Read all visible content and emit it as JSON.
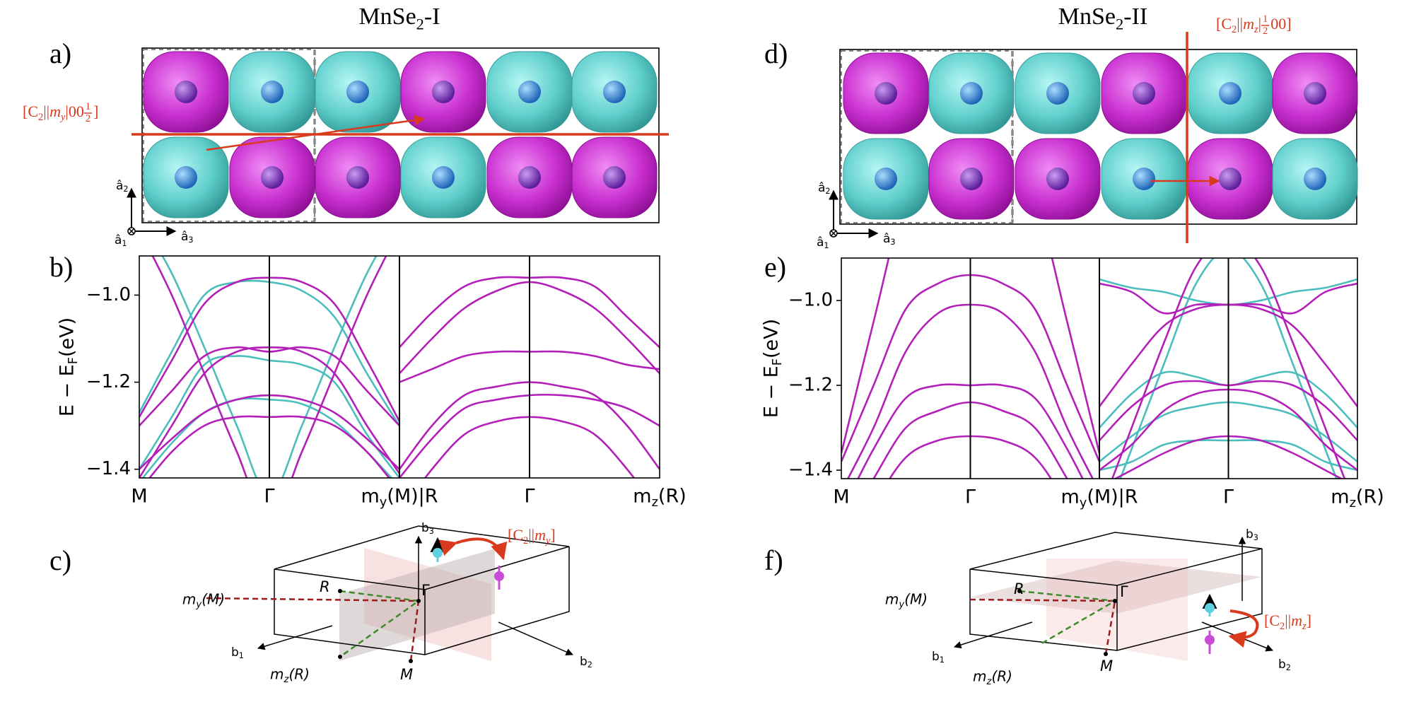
{
  "panel_labels": [
    "a)",
    "b)",
    "c)",
    "d)",
    "e)",
    "f)"
  ],
  "titles": [
    [
      "MnSe",
      "2",
      "-I"
    ],
    [
      "MnSe",
      "2",
      "-II"
    ]
  ],
  "symmetry_labels": [
    [
      "[C",
      "2",
      "||",
      "m",
      "y",
      "|00",
      "1",
      "2",
      "]"
    ],
    [
      "[C",
      "2",
      "||",
      "m",
      "z",
      "|",
      "1",
      "2",
      "00]"
    ]
  ],
  "lattice_axes": [
    [
      "â",
      "2"
    ],
    [
      "â",
      "3"
    ],
    [
      "â",
      "1"
    ]
  ],
  "chart_data": [
    {
      "type": "line",
      "ylabel": [
        "E − E",
        "F",
        " (eV)"
      ],
      "ylim": [
        -1.42,
        -0.91
      ],
      "yticks": [
        {
          "value": -1.0,
          "label": "−1.0"
        },
        {
          "value": -1.2,
          "label": "−1.2"
        },
        {
          "value": -1.4,
          "label": "−1.4"
        }
      ],
      "xlim": [
        0,
        4
      ],
      "xticks": [
        {
          "value": 0,
          "label": [
            "M"
          ]
        },
        {
          "value": 1,
          "label": [
            "Γ"
          ]
        },
        {
          "value": 2,
          "label": [
            "m",
            "y",
            "(M)|R"
          ]
        },
        {
          "value": 3,
          "label": [
            "Γ"
          ]
        },
        {
          "value": 4,
          "label": [
            "m",
            "z",
            "(R)"
          ]
        }
      ],
      "segments": [
        {
          "x": [
            0,
            0.25,
            0.5,
            0.75,
            1,
            1.25,
            1.5,
            1.75,
            2
          ],
          "series": [
            {
              "color": "#4bbdbd",
              "values": [
                -1.27,
                -1.13,
                -1.0,
                -0.97,
                -0.97,
                -0.99,
                -1.05,
                -1.18,
                -1.3
              ]
            },
            {
              "color": "#4bbdbd",
              "values": [
                -1.4,
                -1.28,
                -1.16,
                -1.14,
                -1.15,
                -1.16,
                -1.2,
                -1.32,
                -1.42
              ]
            },
            {
              "color": "#4bbdbd",
              "values": [
                -1.43,
                -1.34,
                -1.27,
                -1.24,
                -1.24,
                -1.25,
                -1.29,
                -1.36,
                -1.44
              ]
            },
            {
              "color": "#4bbdbd",
              "values": [
                -0.82,
                -0.95,
                -1.12,
                -1.3,
                -1.46,
                -1.3,
                -1.12,
                -0.95,
                -0.82
              ]
            },
            {
              "color": "#b31fb8",
              "values": [
                -1.28,
                -1.15,
                -1.02,
                -0.97,
                -0.96,
                -0.97,
                -1.02,
                -1.15,
                -1.29
              ]
            },
            {
              "color": "#b31fb8",
              "values": [
                -1.42,
                -1.3,
                -1.18,
                -1.13,
                -1.12,
                -1.13,
                -1.18,
                -1.3,
                -1.41
              ]
            },
            {
              "color": "#b31fb8",
              "values": [
                -1.4,
                -1.33,
                -1.27,
                -1.24,
                -1.23,
                -1.24,
                -1.27,
                -1.33,
                -1.4
              ]
            },
            {
              "color": "#b31fb8",
              "values": [
                -1.3,
                -1.22,
                -1.14,
                -1.12,
                -1.13,
                -1.12,
                -1.14,
                -1.22,
                -1.3
              ]
            },
            {
              "color": "#b31fb8",
              "values": [
                -1.45,
                -1.36,
                -1.3,
                -1.28,
                -1.28,
                -1.28,
                -1.3,
                -1.36,
                -1.45
              ]
            },
            {
              "color": "#b31fb8",
              "values": [
                -0.85,
                -1.0,
                -1.18,
                -1.36,
                -1.52,
                -1.36,
                -1.18,
                -1.0,
                -0.85
              ]
            }
          ]
        },
        {
          "x": [
            2,
            2.25,
            2.5,
            2.75,
            3,
            3.25,
            3.5,
            3.75,
            4
          ],
          "series": [
            {
              "color": "#b31fb8",
              "values": [
                -1.12,
                -1.04,
                -0.98,
                -0.96,
                -0.96,
                -0.96,
                -0.98,
                -1.05,
                -1.12
              ]
            },
            {
              "color": "#b31fb8",
              "values": [
                -1.18,
                -1.1,
                -1.03,
                -0.99,
                -0.97,
                -0.99,
                -1.03,
                -1.1,
                -1.18
              ]
            },
            {
              "color": "#b31fb8",
              "values": [
                -1.2,
                -1.17,
                -1.14,
                -1.13,
                -1.13,
                -1.13,
                -1.14,
                -1.16,
                -1.17
              ]
            },
            {
              "color": "#b31fb8",
              "values": [
                -1.4,
                -1.3,
                -1.23,
                -1.21,
                -1.2,
                -1.21,
                -1.23,
                -1.3,
                -1.4
              ]
            },
            {
              "color": "#b31fb8",
              "values": [
                -1.42,
                -1.33,
                -1.26,
                -1.24,
                -1.23,
                -1.23,
                -1.24,
                -1.26,
                -1.3
              ]
            },
            {
              "color": "#b31fb8",
              "values": [
                -1.5,
                -1.4,
                -1.32,
                -1.29,
                -1.28,
                -1.29,
                -1.32,
                -1.4,
                -1.5
              ]
            }
          ]
        }
      ]
    },
    {
      "type": "line",
      "ylabel": [
        "E − E",
        "F",
        " (eV)"
      ],
      "ylim": [
        -1.42,
        -0.9
      ],
      "yticks": [
        {
          "value": -1.0,
          "label": "−1.0"
        },
        {
          "value": -1.2,
          "label": "−1.2"
        },
        {
          "value": -1.4,
          "label": "−1.4"
        }
      ],
      "xlim": [
        0,
        4
      ],
      "xticks": [
        {
          "value": 0,
          "label": [
            "M"
          ]
        },
        {
          "value": 1,
          "label": [
            "Γ"
          ]
        },
        {
          "value": 2,
          "label": [
            "m",
            "y",
            "(M)|R"
          ]
        },
        {
          "value": 3,
          "label": [
            "Γ"
          ]
        },
        {
          "value": 4,
          "label": [
            "m",
            "z",
            "(R)"
          ]
        }
      ],
      "segments": [
        {
          "x": [
            0,
            0.25,
            0.5,
            0.75,
            1,
            1.25,
            1.5,
            1.75,
            2
          ],
          "series": [
            {
              "color": "#b31fb8",
              "values": [
                -1.38,
                -1.2,
                -1.02,
                -0.96,
                -0.94,
                -0.96,
                -1.02,
                -1.2,
                -1.38
              ]
            },
            {
              "color": "#b31fb8",
              "values": [
                -1.45,
                -1.3,
                -1.12,
                -1.03,
                -1.01,
                -1.03,
                -1.12,
                -1.3,
                -1.45
              ]
            },
            {
              "color": "#b31fb8",
              "values": [
                -1.5,
                -1.35,
                -1.23,
                -1.2,
                -1.2,
                -1.2,
                -1.23,
                -1.35,
                -1.5
              ]
            },
            {
              "color": "#b31fb8",
              "values": [
                -1.55,
                -1.42,
                -1.3,
                -1.26,
                -1.24,
                -1.26,
                -1.3,
                -1.42,
                -1.55
              ]
            },
            {
              "color": "#b31fb8",
              "values": [
                -1.6,
                -1.48,
                -1.37,
                -1.33,
                -1.32,
                -1.33,
                -1.37,
                -1.48,
                -1.6
              ]
            },
            {
              "color": "#b31fb8",
              "values": [
                -1.36,
                -1.05,
                -0.75,
                -0.6,
                -0.55,
                -0.6,
                -0.75,
                -1.05,
                -1.36
              ]
            }
          ]
        },
        {
          "x": [
            2,
            2.25,
            2.5,
            2.75,
            3,
            3.25,
            3.5,
            3.75,
            4
          ],
          "series": [
            {
              "color": "#4bbdbd",
              "values": [
                -0.95,
                -0.97,
                -0.98,
                -1.0,
                -1.01,
                -1.0,
                -0.98,
                -0.97,
                -0.95
              ]
            },
            {
              "color": "#4bbdbd",
              "values": [
                -1.3,
                -1.22,
                -1.17,
                -1.18,
                -1.2,
                -1.18,
                -1.17,
                -1.22,
                -1.3
              ]
            },
            {
              "color": "#4bbdbd",
              "values": [
                -1.38,
                -1.32,
                -1.27,
                -1.25,
                -1.24,
                -1.25,
                -1.27,
                -1.32,
                -1.38
              ]
            },
            {
              "color": "#4bbdbd",
              "values": [
                -1.4,
                -1.38,
                -1.34,
                -1.33,
                -1.33,
                -1.33,
                -1.34,
                -1.38,
                -1.4
              ]
            },
            {
              "color": "#4bbdbd",
              "values": [
                -1.55,
                -1.35,
                -1.15,
                -0.96,
                -0.88,
                -0.96,
                -1.15,
                -1.35,
                -1.55
              ]
            },
            {
              "color": "#b31fb8",
              "values": [
                -0.96,
                -0.98,
                -1.03,
                -1.01,
                -1.01,
                -1.01,
                -1.03,
                -0.98,
                -0.96
              ]
            },
            {
              "color": "#b31fb8",
              "values": [
                -1.25,
                -1.15,
                -1.06,
                -1.02,
                -1.01,
                -1.02,
                -1.06,
                -1.15,
                -1.25
              ]
            },
            {
              "color": "#b31fb8",
              "values": [
                -1.33,
                -1.25,
                -1.2,
                -1.19,
                -1.2,
                -1.19,
                -1.2,
                -1.25,
                -1.33
              ]
            },
            {
              "color": "#b31fb8",
              "values": [
                -1.4,
                -1.34,
                -1.26,
                -1.22,
                -1.21,
                -1.22,
                -1.26,
                -1.34,
                -1.4
              ]
            },
            {
              "color": "#b31fb8",
              "values": [
                -1.44,
                -1.4,
                -1.36,
                -1.33,
                -1.32,
                -1.33,
                -1.36,
                -1.4,
                -1.44
              ]
            },
            {
              "color": "#b31fb8",
              "values": [
                -1.5,
                -1.3,
                -1.1,
                -0.92,
                -0.85,
                -0.92,
                -1.1,
                -1.3,
                -1.5
              ]
            }
          ]
        }
      ]
    }
  ],
  "brillouin_zones": [
    {
      "b3": [
        "b",
        "3"
      ],
      "b1": [
        "b",
        "1"
      ],
      "b2": [
        "b",
        "2"
      ],
      "R": "R",
      "Gamma": "Γ",
      "M": "M",
      "my": [
        "m",
        "y",
        "(M)"
      ],
      "mz": [
        "m",
        "z",
        "(R)"
      ],
      "rotation": [
        "[C",
        "2",
        "||",
        "m",
        "y",
        "]"
      ]
    },
    {
      "b3": [
        "b",
        "3"
      ],
      "b1": [
        "b",
        "1"
      ],
      "b2": [
        "b",
        "2"
      ],
      "R": "R",
      "Gamma": "Γ",
      "M": "M",
      "my": [
        "m",
        "y",
        "(M)"
      ],
      "mz": [
        "m",
        "z",
        "(R)"
      ],
      "rotation": [
        "[C",
        "2",
        "||",
        "m",
        "z",
        "]"
      ]
    }
  ]
}
